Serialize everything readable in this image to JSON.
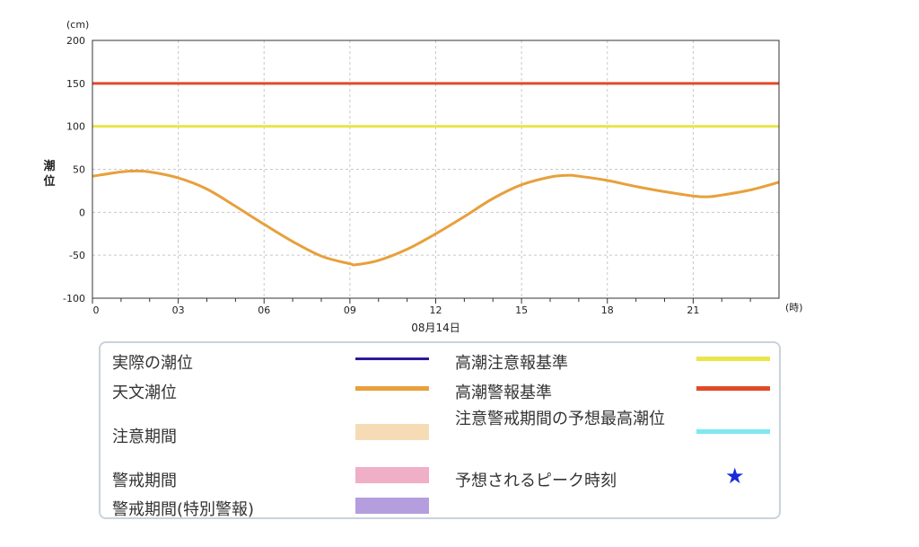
{
  "chart_data": {
    "type": "line",
    "y_unit": "(cm)",
    "x_unit": "(時)",
    "ylabel": "潮位",
    "date_label": "08月14日",
    "ylim": [
      -100,
      200
    ],
    "y_ticks": [
      "200",
      "150",
      "100",
      "50",
      "0",
      "-50",
      "-100"
    ],
    "xlim": [
      0,
      24
    ],
    "x_ticks": [
      "0",
      "03",
      "06",
      "09",
      "12",
      "15",
      "18",
      "21"
    ],
    "grid": true,
    "reference_lines": [
      {
        "name": "高潮警報基準",
        "value": 150,
        "color": "#e04a2a"
      },
      {
        "name": "高潮注意報基準",
        "value": 100,
        "color": "#e8e64a"
      }
    ],
    "series": [
      {
        "name": "天文潮位",
        "color": "#e8a03c",
        "x": [
          0,
          1,
          1.5,
          2,
          3,
          4,
          5,
          6,
          7,
          8,
          9,
          9.2,
          10,
          11,
          12,
          13,
          14,
          15,
          16,
          16.6,
          17,
          18,
          19,
          20,
          21,
          21.5,
          22,
          23,
          24
        ],
        "y": [
          42,
          47,
          48,
          47,
          40,
          27,
          7,
          -14,
          -34,
          -51,
          -60,
          -61,
          -56,
          -43,
          -25,
          -5,
          16,
          32,
          41,
          43,
          42,
          37,
          30,
          24,
          19,
          18,
          20,
          26,
          35
        ]
      }
    ]
  },
  "legend": {
    "items": [
      {
        "label": "実際の潮位",
        "color": "#2b1a9a",
        "kind": "line"
      },
      {
        "label": "天文潮位",
        "color": "#e8a03c",
        "kind": "line"
      },
      {
        "label": "注意期間",
        "color": "#f6dcb4",
        "kind": "band"
      },
      {
        "label": "警戒期間",
        "color": "#f0afc6",
        "kind": "band"
      },
      {
        "label": "警戒期間(特別警報)",
        "color": "#b49ede",
        "kind": "band"
      },
      {
        "label": "高潮注意報基準",
        "color": "#e8e64a",
        "kind": "line"
      },
      {
        "label": "高潮警報基準",
        "color": "#e04a2a",
        "kind": "line"
      },
      {
        "label": "注意警戒期間の予想最高潮位",
        "color": "#7de8f2",
        "kind": "line"
      },
      {
        "label": "予想されるピーク時刻",
        "color": "#1a2ad8",
        "kind": "star",
        "symbol": "★"
      }
    ]
  }
}
